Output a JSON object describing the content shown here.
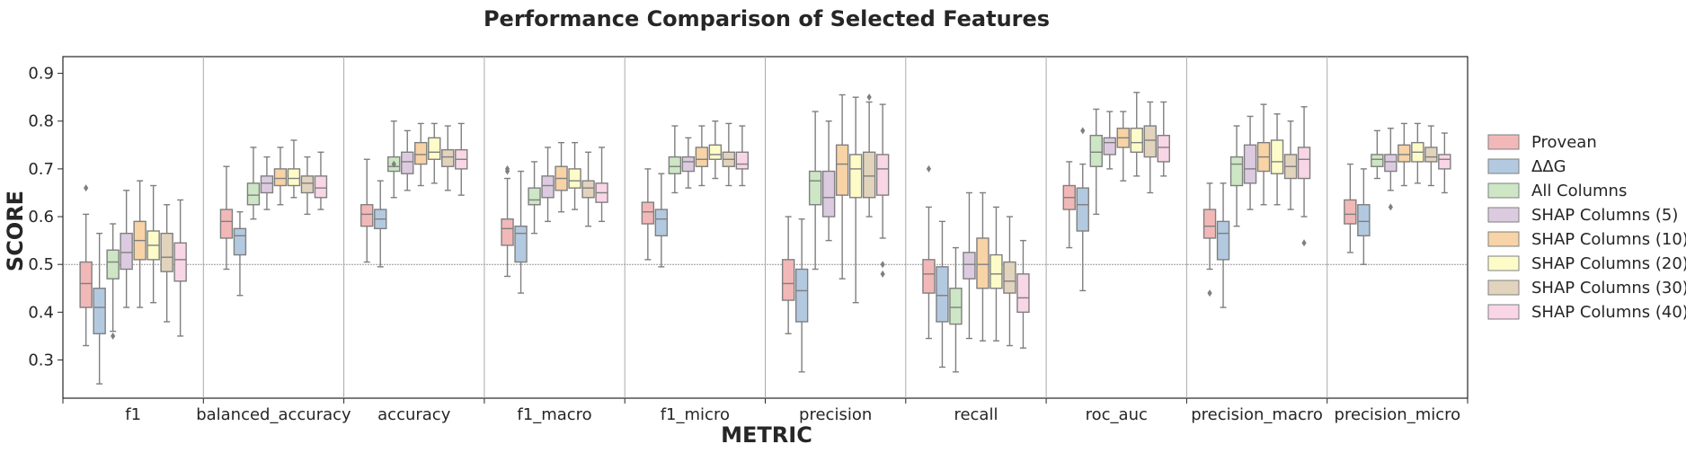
{
  "chart_data": {
    "type": "boxplot",
    "title": "Performance Comparison of Selected Features",
    "xlabel": "METRIC",
    "ylabel": "SCORE",
    "ylim": [
      0.22,
      0.935
    ],
    "yticks": [
      0.3,
      0.4,
      0.5,
      0.6,
      0.7,
      0.8,
      0.9
    ],
    "ytick_labels": [
      "0.3",
      "0.4",
      "0.5",
      "0.6",
      "0.7",
      "0.8",
      "0.9"
    ],
    "reference_line": 0.5,
    "grid": false,
    "legend_position": "right",
    "categories": [
      "f1",
      "balanced_accuracy",
      "accuracy",
      "f1_macro",
      "f1_micro",
      "precision",
      "recall",
      "roc_auc",
      "precision_macro",
      "precision_micro"
    ],
    "series": [
      {
        "name": "Provean",
        "color": "#f2b8b8",
        "boxes": [
          [
            0.33,
            0.41,
            0.46,
            0.505,
            0.605,
            [
              0.66
            ]
          ],
          [
            0.49,
            0.555,
            0.59,
            0.615,
            0.705,
            []
          ],
          [
            0.505,
            0.58,
            0.605,
            0.625,
            0.72,
            []
          ],
          [
            0.475,
            0.54,
            0.575,
            0.595,
            0.68,
            [
              0.695,
              0.7
            ]
          ],
          [
            0.51,
            0.585,
            0.61,
            0.63,
            0.7,
            []
          ],
          [
            0.355,
            0.425,
            0.46,
            0.51,
            0.6,
            []
          ],
          [
            0.345,
            0.44,
            0.48,
            0.51,
            0.62,
            [
              0.7
            ]
          ],
          [
            0.535,
            0.615,
            0.64,
            0.665,
            0.715,
            []
          ],
          [
            0.49,
            0.555,
            0.58,
            0.615,
            0.67,
            [
              0.44
            ]
          ],
          [
            0.525,
            0.585,
            0.605,
            0.635,
            0.71,
            []
          ]
        ]
      },
      {
        "name": "ΔΔG",
        "color": "#b3c9e0",
        "boxes": [
          [
            0.25,
            0.355,
            0.41,
            0.45,
            0.565,
            []
          ],
          [
            0.435,
            0.52,
            0.56,
            0.575,
            0.61,
            []
          ],
          [
            0.495,
            0.575,
            0.595,
            0.615,
            0.675,
            []
          ],
          [
            0.44,
            0.505,
            0.565,
            0.58,
            0.695,
            []
          ],
          [
            0.495,
            0.56,
            0.595,
            0.615,
            0.69,
            []
          ],
          [
            0.275,
            0.38,
            0.445,
            0.49,
            0.595,
            []
          ],
          [
            0.285,
            0.38,
            0.435,
            0.495,
            0.59,
            []
          ],
          [
            0.445,
            0.57,
            0.625,
            0.66,
            0.71,
            [
              0.78
            ]
          ],
          [
            0.41,
            0.51,
            0.565,
            0.59,
            0.67,
            []
          ],
          [
            0.5,
            0.56,
            0.59,
            0.625,
            0.7,
            []
          ]
        ]
      },
      {
        "name": "All Columns",
        "color": "#cde6c5",
        "boxes": [
          [
            0.36,
            0.47,
            0.505,
            0.53,
            0.585,
            [
              0.35
            ]
          ],
          [
            0.595,
            0.625,
            0.645,
            0.67,
            0.745,
            []
          ],
          [
            0.64,
            0.695,
            0.705,
            0.725,
            0.8,
            [
              0.71
            ]
          ],
          [
            0.565,
            0.625,
            0.635,
            0.66,
            0.715,
            []
          ],
          [
            0.65,
            0.69,
            0.705,
            0.725,
            0.79,
            []
          ],
          [
            0.49,
            0.625,
            0.675,
            0.695,
            0.82,
            []
          ],
          [
            0.275,
            0.375,
            0.41,
            0.45,
            0.535,
            []
          ],
          [
            0.605,
            0.705,
            0.735,
            0.77,
            0.825,
            []
          ],
          [
            0.58,
            0.665,
            0.71,
            0.725,
            0.79,
            []
          ],
          [
            0.68,
            0.705,
            0.72,
            0.73,
            0.78,
            []
          ]
        ]
      },
      {
        "name": "SHAP Columns (5)",
        "color": "#dccbe0",
        "boxes": [
          [
            0.41,
            0.49,
            0.525,
            0.565,
            0.655,
            []
          ],
          [
            0.615,
            0.65,
            0.67,
            0.685,
            0.725,
            []
          ],
          [
            0.655,
            0.69,
            0.715,
            0.735,
            0.78,
            []
          ],
          [
            0.59,
            0.64,
            0.665,
            0.685,
            0.745,
            []
          ],
          [
            0.66,
            0.695,
            0.715,
            0.725,
            0.765,
            []
          ],
          [
            0.55,
            0.6,
            0.64,
            0.695,
            0.8,
            []
          ],
          [
            0.345,
            0.47,
            0.5,
            0.525,
            0.65,
            []
          ],
          [
            0.7,
            0.73,
            0.755,
            0.765,
            0.82,
            []
          ],
          [
            0.615,
            0.67,
            0.7,
            0.75,
            0.81,
            []
          ],
          [
            0.655,
            0.695,
            0.715,
            0.73,
            0.785,
            [
              0.62
            ]
          ]
        ]
      },
      {
        "name": "SHAP Columns (10)",
        "color": "#f7d3a6",
        "boxes": [
          [
            0.41,
            0.51,
            0.55,
            0.59,
            0.675,
            []
          ],
          [
            0.625,
            0.665,
            0.68,
            0.7,
            0.745,
            []
          ],
          [
            0.665,
            0.71,
            0.73,
            0.755,
            0.795,
            []
          ],
          [
            0.61,
            0.655,
            0.68,
            0.705,
            0.755,
            []
          ],
          [
            0.665,
            0.705,
            0.72,
            0.745,
            0.79,
            []
          ],
          [
            0.47,
            0.645,
            0.71,
            0.75,
            0.855,
            []
          ],
          [
            0.34,
            0.45,
            0.5,
            0.555,
            0.65,
            []
          ],
          [
            0.675,
            0.745,
            0.765,
            0.785,
            0.82,
            []
          ],
          [
            0.625,
            0.695,
            0.725,
            0.755,
            0.835,
            []
          ],
          [
            0.665,
            0.715,
            0.73,
            0.75,
            0.795,
            []
          ]
        ]
      },
      {
        "name": "SHAP Columns (20)",
        "color": "#fdfcc9",
        "boxes": [
          [
            0.42,
            0.51,
            0.54,
            0.57,
            0.665,
            []
          ],
          [
            0.64,
            0.665,
            0.68,
            0.7,
            0.76,
            []
          ],
          [
            0.67,
            0.72,
            0.735,
            0.765,
            0.795,
            []
          ],
          [
            0.615,
            0.66,
            0.675,
            0.7,
            0.755,
            []
          ],
          [
            0.68,
            0.72,
            0.73,
            0.75,
            0.8,
            []
          ],
          [
            0.42,
            0.64,
            0.7,
            0.73,
            0.85,
            []
          ],
          [
            0.34,
            0.45,
            0.48,
            0.52,
            0.62,
            []
          ],
          [
            0.685,
            0.735,
            0.755,
            0.785,
            0.86,
            []
          ],
          [
            0.625,
            0.69,
            0.715,
            0.76,
            0.815,
            []
          ],
          [
            0.67,
            0.715,
            0.735,
            0.755,
            0.795,
            []
          ]
        ]
      },
      {
        "name": "SHAP Columns (30)",
        "color": "#e2d3bd",
        "boxes": [
          [
            0.38,
            0.485,
            0.515,
            0.565,
            0.625,
            []
          ],
          [
            0.605,
            0.65,
            0.67,
            0.685,
            0.725,
            []
          ],
          [
            0.655,
            0.705,
            0.725,
            0.74,
            0.79,
            []
          ],
          [
            0.58,
            0.64,
            0.66,
            0.675,
            0.735,
            []
          ],
          [
            0.665,
            0.705,
            0.72,
            0.735,
            0.795,
            []
          ],
          [
            0.6,
            0.64,
            0.685,
            0.735,
            0.84,
            [
              0.85
            ]
          ],
          [
            0.33,
            0.44,
            0.465,
            0.505,
            0.6,
            []
          ],
          [
            0.65,
            0.725,
            0.76,
            0.79,
            0.84,
            []
          ],
          [
            0.615,
            0.68,
            0.705,
            0.73,
            0.8,
            []
          ],
          [
            0.665,
            0.715,
            0.725,
            0.745,
            0.79,
            []
          ]
        ]
      },
      {
        "name": "SHAP Columns (40)",
        "color": "#f8d6e6",
        "boxes": [
          [
            0.35,
            0.465,
            0.51,
            0.545,
            0.635,
            []
          ],
          [
            0.615,
            0.64,
            0.66,
            0.685,
            0.735,
            []
          ],
          [
            0.645,
            0.7,
            0.72,
            0.74,
            0.795,
            []
          ],
          [
            0.59,
            0.63,
            0.65,
            0.67,
            0.745,
            []
          ],
          [
            0.665,
            0.7,
            0.71,
            0.735,
            0.79,
            []
          ],
          [
            0.555,
            0.645,
            0.7,
            0.73,
            0.835,
            [
              0.5,
              0.48
            ]
          ],
          [
            0.325,
            0.4,
            0.43,
            0.48,
            0.55,
            []
          ],
          [
            0.685,
            0.715,
            0.745,
            0.77,
            0.84,
            []
          ],
          [
            0.6,
            0.68,
            0.72,
            0.745,
            0.83,
            [
              0.545
            ]
          ],
          [
            0.65,
            0.7,
            0.72,
            0.73,
            0.775,
            []
          ]
        ]
      }
    ]
  }
}
